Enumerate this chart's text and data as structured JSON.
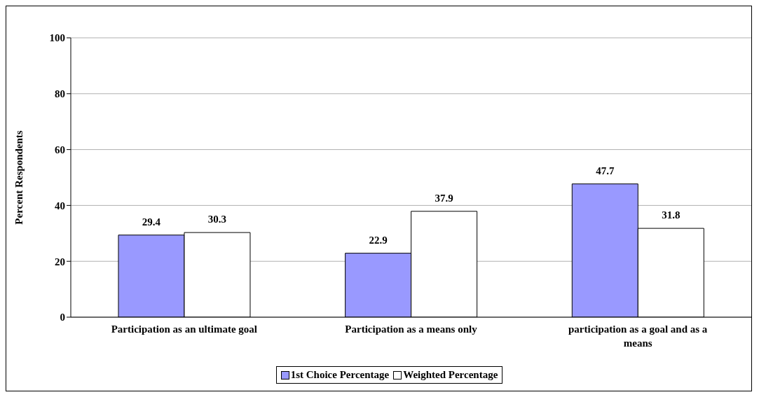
{
  "chart_data": {
    "type": "bar",
    "ylabel": "Percent Respondents",
    "categories": [
      "Participation as an ultimate goal",
      "Participation as a means only",
      "participation as a goal and as a means"
    ],
    "series": [
      {
        "name": "1st Choice Percentage",
        "color": "#9999ff",
        "values": [
          29.4,
          22.9,
          47.7
        ]
      },
      {
        "name": "Weighted Percentage",
        "color": "#ffffff",
        "values": [
          30.3,
          37.9,
          31.8
        ]
      }
    ],
    "ylim": [
      0,
      100
    ],
    "yticks": [
      0,
      20,
      40,
      60,
      80,
      100
    ],
    "grid": "y",
    "legend": "bottom",
    "data_labels": true
  }
}
